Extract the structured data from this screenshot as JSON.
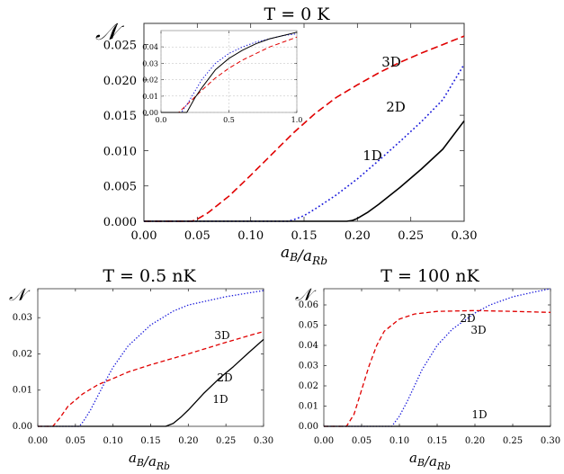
{
  "chart_data": [
    {
      "id": "main",
      "type": "line",
      "title": "T = 0 K",
      "ylabel_symbol": "𝒩",
      "xlabel": "a_B/a_Rb",
      "xlim": [
        0.0,
        0.3
      ],
      "ylim": [
        0.0,
        0.028
      ],
      "xticks": [
        "0.00",
        "0.05",
        "0.10",
        "0.15",
        "0.20",
        "0.25",
        "0.30"
      ],
      "yticks": [
        "0.000",
        "0.005",
        "0.010",
        "0.015",
        "0.020",
        "0.025"
      ],
      "series": [
        {
          "name": "3D",
          "label": "3D",
          "color": "#e00000",
          "style": "dashed",
          "x": [
            0.0,
            0.045,
            0.05,
            0.06,
            0.08,
            0.1,
            0.12,
            0.14,
            0.16,
            0.18,
            0.2,
            0.22,
            0.24,
            0.26,
            0.28,
            0.3
          ],
          "y": [
            0.0,
            0.0,
            0.0003,
            0.0012,
            0.0036,
            0.0065,
            0.0095,
            0.0125,
            0.0152,
            0.0175,
            0.0193,
            0.021,
            0.0225,
            0.0238,
            0.025,
            0.0262
          ]
        },
        {
          "name": "2D",
          "label": "2D",
          "color": "#1a1adb",
          "style": "dotted",
          "x": [
            0.0,
            0.135,
            0.14,
            0.15,
            0.16,
            0.18,
            0.2,
            0.22,
            0.24,
            0.26,
            0.28,
            0.3
          ],
          "y": [
            0.0,
            0.0,
            0.0002,
            0.0008,
            0.0017,
            0.0037,
            0.006,
            0.0086,
            0.0113,
            0.0141,
            0.0172,
            0.0222
          ]
        },
        {
          "name": "1D",
          "label": "1D",
          "color": "#000000",
          "style": "solid",
          "x": [
            0.0,
            0.19,
            0.195,
            0.2,
            0.21,
            0.22,
            0.24,
            0.26,
            0.28,
            0.3
          ],
          "y": [
            0.0,
            0.0,
            0.0001,
            0.0004,
            0.0013,
            0.0024,
            0.0048,
            0.0074,
            0.0102,
            0.0142
          ]
        }
      ]
    },
    {
      "id": "inset",
      "type": "line",
      "title": "",
      "xlim": [
        0.0,
        1.0
      ],
      "ylim": [
        0.0,
        0.05
      ],
      "xticks": [
        "0.0",
        "0.5",
        "1.0"
      ],
      "yticks": [
        "0.00",
        "0.01",
        "0.02",
        "0.03",
        "0.04"
      ],
      "series": [
        {
          "name": "3D",
          "color": "#e00000",
          "style": "dashed",
          "x": [
            0.0,
            0.13,
            0.2,
            0.3,
            0.4,
            0.5,
            0.6,
            0.7,
            0.8,
            0.9,
            1.0
          ],
          "y": [
            0.0,
            0.0,
            0.0055,
            0.0135,
            0.021,
            0.027,
            0.032,
            0.036,
            0.04,
            0.043,
            0.046
          ]
        },
        {
          "name": "2D",
          "color": "#1a1adb",
          "style": "dotted",
          "x": [
            0.0,
            0.15,
            0.2,
            0.3,
            0.4,
            0.5,
            0.6,
            0.7,
            0.8,
            0.9,
            1.0
          ],
          "y": [
            0.0,
            0.0,
            0.006,
            0.02,
            0.03,
            0.036,
            0.04,
            0.043,
            0.045,
            0.047,
            0.048
          ]
        },
        {
          "name": "1D",
          "color": "#000000",
          "style": "solid",
          "x": [
            0.0,
            0.19,
            0.25,
            0.3,
            0.4,
            0.5,
            0.6,
            0.7,
            0.8,
            0.9,
            1.0
          ],
          "y": [
            0.0,
            0.0,
            0.009,
            0.015,
            0.026,
            0.033,
            0.038,
            0.042,
            0.045,
            0.047,
            0.049
          ]
        }
      ]
    },
    {
      "id": "bl",
      "type": "line",
      "title": "T = 0.5 nK",
      "ylabel_symbol": "𝒩",
      "xlabel": "a_B/a_Rb",
      "xlim": [
        0.0,
        0.3
      ],
      "ylim": [
        0.0,
        0.038
      ],
      "xticks": [
        "0.00",
        "0.05",
        "0.10",
        "0.15",
        "0.20",
        "0.25",
        "0.30"
      ],
      "yticks": [
        "0.00",
        "0.01",
        "0.02",
        "0.03"
      ],
      "series": [
        {
          "name": "3D",
          "label": "3D",
          "color": "#1a1adb",
          "style": "dotted",
          "x": [
            0.0,
            0.055,
            0.06,
            0.07,
            0.08,
            0.09,
            0.1,
            0.12,
            0.15,
            0.18,
            0.2,
            0.25,
            0.3
          ],
          "y": [
            0.0,
            0.0,
            0.0012,
            0.0045,
            0.0085,
            0.0125,
            0.0163,
            0.0222,
            0.028,
            0.0318,
            0.0335,
            0.0358,
            0.0375
          ]
        },
        {
          "name": "2D",
          "label": "2D",
          "color": "#e00000",
          "style": "dashed",
          "x": [
            0.0,
            0.02,
            0.03,
            0.04,
            0.06,
            0.08,
            0.1,
            0.12,
            0.15,
            0.2,
            0.25,
            0.3
          ],
          "y": [
            0.0,
            0.0,
            0.0025,
            0.0055,
            0.009,
            0.0115,
            0.0132,
            0.015,
            0.017,
            0.02,
            0.0232,
            0.0262
          ]
        },
        {
          "name": "1D",
          "label": "1D",
          "color": "#000000",
          "style": "solid",
          "x": [
            0.0,
            0.17,
            0.18,
            0.19,
            0.2,
            0.22,
            0.24,
            0.26,
            0.28,
            0.3
          ],
          "y": [
            0.0,
            0.0,
            0.0008,
            0.0025,
            0.0045,
            0.009,
            0.013,
            0.0165,
            0.0203,
            0.024
          ]
        }
      ]
    },
    {
      "id": "br",
      "type": "line",
      "title": "T = 100 nK",
      "ylabel_symbol": "𝒩",
      "xlabel": "a_B/a_Rb",
      "xlim": [
        0.0,
        0.3
      ],
      "ylim": [
        0.0,
        0.068
      ],
      "xticks": [
        "0.00",
        "0.05",
        "0.10",
        "0.15",
        "0.20",
        "0.25",
        "0.30"
      ],
      "yticks": [
        "0.00",
        "0.01",
        "0.02",
        "0.03",
        "0.04",
        "0.05",
        "0.06"
      ],
      "series": [
        {
          "name": "2D",
          "label": "2D",
          "color": "#1a1adb",
          "style": "dotted",
          "x": [
            0.0,
            0.09,
            0.1,
            0.11,
            0.12,
            0.13,
            0.15,
            0.17,
            0.2,
            0.22,
            0.25,
            0.28,
            0.3
          ],
          "y": [
            0.0,
            0.0,
            0.005,
            0.012,
            0.02,
            0.028,
            0.04,
            0.048,
            0.056,
            0.06,
            0.064,
            0.0665,
            0.068
          ]
        },
        {
          "name": "3D",
          "label": "3D",
          "color": "#e00000",
          "style": "dashed",
          "x": [
            0.0,
            0.03,
            0.04,
            0.05,
            0.06,
            0.07,
            0.08,
            0.1,
            0.12,
            0.15,
            0.2,
            0.25,
            0.3
          ],
          "y": [
            0.0,
            0.0,
            0.006,
            0.018,
            0.03,
            0.04,
            0.047,
            0.053,
            0.0555,
            0.0568,
            0.0572,
            0.0568,
            0.0563
          ]
        },
        {
          "name": "1D",
          "label": "1D",
          "color": "#000000",
          "style": "solid",
          "x": [
            0.0,
            0.3
          ],
          "y": [
            0.0,
            0.0
          ]
        }
      ]
    }
  ]
}
